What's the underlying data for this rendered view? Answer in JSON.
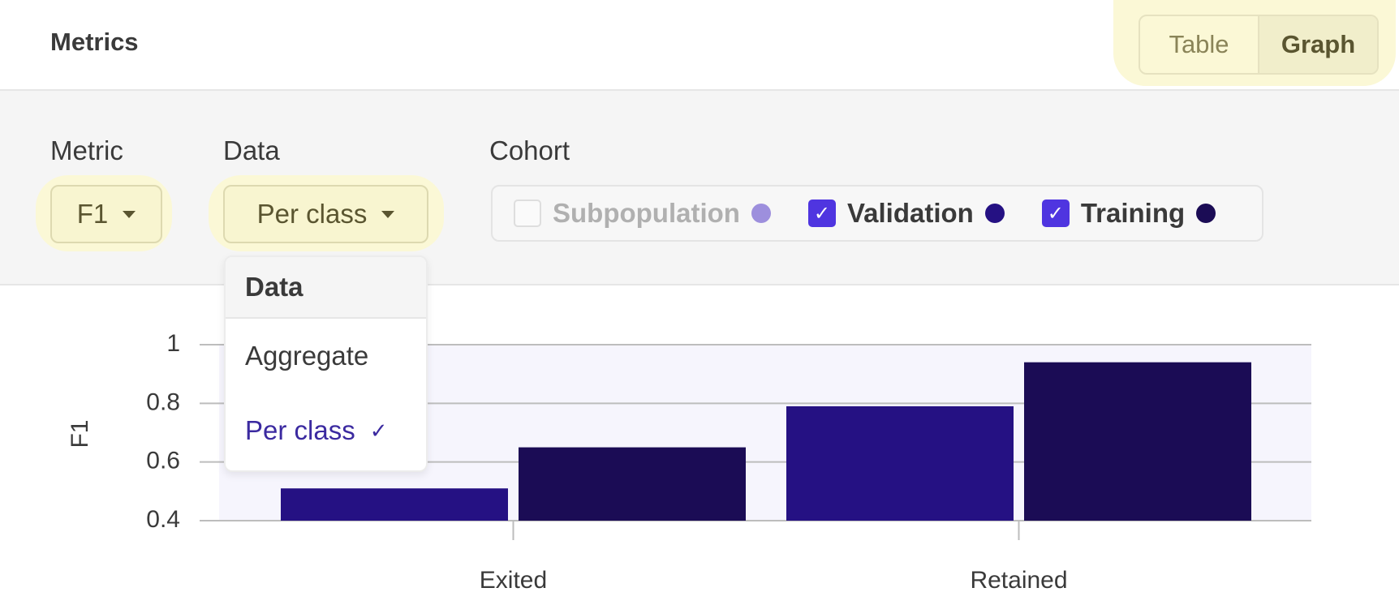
{
  "header": {
    "title": "Metrics",
    "views": [
      "Table",
      "Graph"
    ],
    "selected_view": 1
  },
  "filters": {
    "metric": {
      "label": "Metric",
      "value": "F1"
    },
    "data": {
      "label": "Data",
      "value": "Per class"
    },
    "cohort": {
      "label": "Cohort"
    }
  },
  "dropdown": {
    "title": "Data",
    "options": [
      "Aggregate",
      "Per class"
    ],
    "selected": 1
  },
  "chart_data": {
    "type": "bar",
    "ylabel": "F1",
    "categories": [
      "Exited",
      "Retained"
    ],
    "series": [
      {
        "name": "Subpopulation",
        "color": "#9d8fdd",
        "checked": false,
        "values": [
          null,
          null
        ]
      },
      {
        "name": "Validation",
        "color": "#251183",
        "checked": true,
        "values": [
          0.51,
          0.79
        ]
      },
      {
        "name": "Training",
        "color": "#1b0c55",
        "checked": true,
        "values": [
          0.65,
          0.94
        ]
      }
    ],
    "ylim": [
      0.4,
      1
    ],
    "yticks": [
      0.4,
      0.6,
      0.8,
      1
    ],
    "grid": true
  }
}
